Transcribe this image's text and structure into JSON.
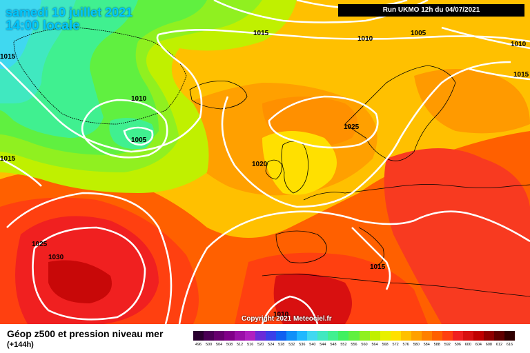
{
  "header": {
    "date": "samedi 10 juillet 2021",
    "time": "14:00 locale",
    "run": "Run UKMO 12h du 04/07/2021"
  },
  "copyright": "Copyright 2021 Meteociel.fr",
  "isobars": [
    "1015",
    "1010",
    "1005",
    "1010",
    "1015",
    "1010",
    "1005",
    "1015",
    "1025",
    "1020",
    "1025",
    "1030",
    "1015",
    "1010"
  ],
  "legend": {
    "title": "Géop z500 et pression niveau mer",
    "subtitle": "(+144h)",
    "scale": [
      {
        "label": "496",
        "color": "#2a0030"
      },
      {
        "label": "500",
        "color": "#4a0055"
      },
      {
        "label": "504",
        "color": "#66006e"
      },
      {
        "label": "508",
        "color": "#800088"
      },
      {
        "label": "512",
        "color": "#9a10a8"
      },
      {
        "label": "516",
        "color": "#b020c0"
      },
      {
        "label": "520",
        "color": "#6a2cd8"
      },
      {
        "label": "524",
        "color": "#3a40e8"
      },
      {
        "label": "528",
        "color": "#1060f0"
      },
      {
        "label": "532",
        "color": "#1090f8"
      },
      {
        "label": "536",
        "color": "#20b8ff"
      },
      {
        "label": "540",
        "color": "#40d8f0"
      },
      {
        "label": "544",
        "color": "#40e8c0"
      },
      {
        "label": "548",
        "color": "#40f090"
      },
      {
        "label": "552",
        "color": "#40f060"
      },
      {
        "label": "556",
        "color": "#60f040"
      },
      {
        "label": "560",
        "color": "#90f020"
      },
      {
        "label": "564",
        "color": "#c0f000"
      },
      {
        "label": "568",
        "color": "#e8f000"
      },
      {
        "label": "572",
        "color": "#ffe000"
      },
      {
        "label": "576",
        "color": "#ffc000"
      },
      {
        "label": "580",
        "color": "#ffa000"
      },
      {
        "label": "584",
        "color": "#ff8000"
      },
      {
        "label": "588",
        "color": "#ff6000"
      },
      {
        "label": "592",
        "color": "#ff4010"
      },
      {
        "label": "596",
        "color": "#f02020"
      },
      {
        "label": "600",
        "color": "#d81010"
      },
      {
        "label": "604",
        "color": "#c00000"
      },
      {
        "label": "608",
        "color": "#900000"
      },
      {
        "label": "612",
        "color": "#600000"
      },
      {
        "label": "616",
        "color": "#300000"
      }
    ]
  }
}
